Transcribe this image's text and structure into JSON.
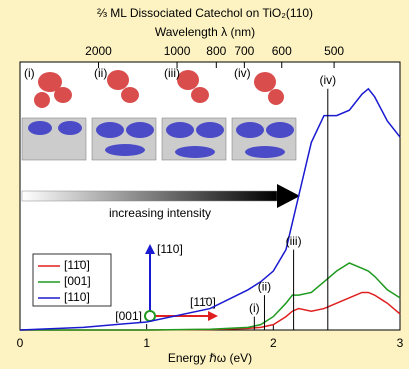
{
  "chart_data": {
    "type": "line",
    "title": "⅔ ML Dissociated Catechol on TiO₂(110)",
    "x2_label": "Wavelength λ (nm)",
    "x_label": "Energy ℏω (eV)",
    "x": [
      0,
      0.5,
      1.0,
      1.5,
      1.8,
      1.9,
      2.0,
      2.1,
      2.15,
      2.2,
      2.3,
      2.4,
      2.5,
      2.6,
      2.7,
      2.75,
      2.8,
      2.9,
      3.0
    ],
    "series": [
      {
        "name": "[11̄0]",
        "color": "#e02020",
        "values": [
          0,
          0,
          0,
          0.002,
          0.006,
          0.01,
          0.02,
          0.05,
          0.07,
          0.08,
          0.07,
          0.08,
          0.1,
          0.12,
          0.14,
          0.14,
          0.13,
          0.1,
          0.06
        ]
      },
      {
        "name": "[001]",
        "color": "#1f9a1f",
        "values": [
          0,
          0,
          0,
          0.003,
          0.01,
          0.02,
          0.05,
          0.1,
          0.13,
          0.13,
          0.14,
          0.18,
          0.22,
          0.25,
          0.23,
          0.22,
          0.2,
          0.15,
          0.12
        ]
      },
      {
        "name": "[110]",
        "color": "#1a1ad0",
        "values": [
          0,
          0.01,
          0.03,
          0.08,
          0.15,
          0.18,
          0.22,
          0.3,
          0.4,
          0.5,
          0.7,
          0.8,
          0.8,
          0.82,
          0.88,
          0.9,
          0.87,
          0.78,
          0.72
        ]
      }
    ],
    "transitions": [
      {
        "label": "(i)",
        "energy": 1.85,
        "intensity": 0.05
      },
      {
        "label": "(ii)",
        "energy": 1.93,
        "intensity": 0.13
      },
      {
        "label": "(iii)",
        "energy": 2.16,
        "intensity": 0.3
      },
      {
        "label": "(iv)",
        "energy": 2.43,
        "intensity": 0.9
      }
    ],
    "xlim": [
      0,
      3
    ],
    "xticks": [
      0,
      1,
      2,
      3
    ],
    "ylim": [
      0,
      1
    ],
    "x2ticks": [
      2000,
      1000,
      800,
      700,
      600,
      500
    ],
    "legend": "lower left"
  },
  "panels": [
    "(i)",
    "(ii)",
    "(iii)",
    "(iv)"
  ],
  "arrow_label": "increasing intensity",
  "axes_labels": {
    "up": "[110]",
    "origin": "[001]",
    "right": "[11̄0]"
  }
}
